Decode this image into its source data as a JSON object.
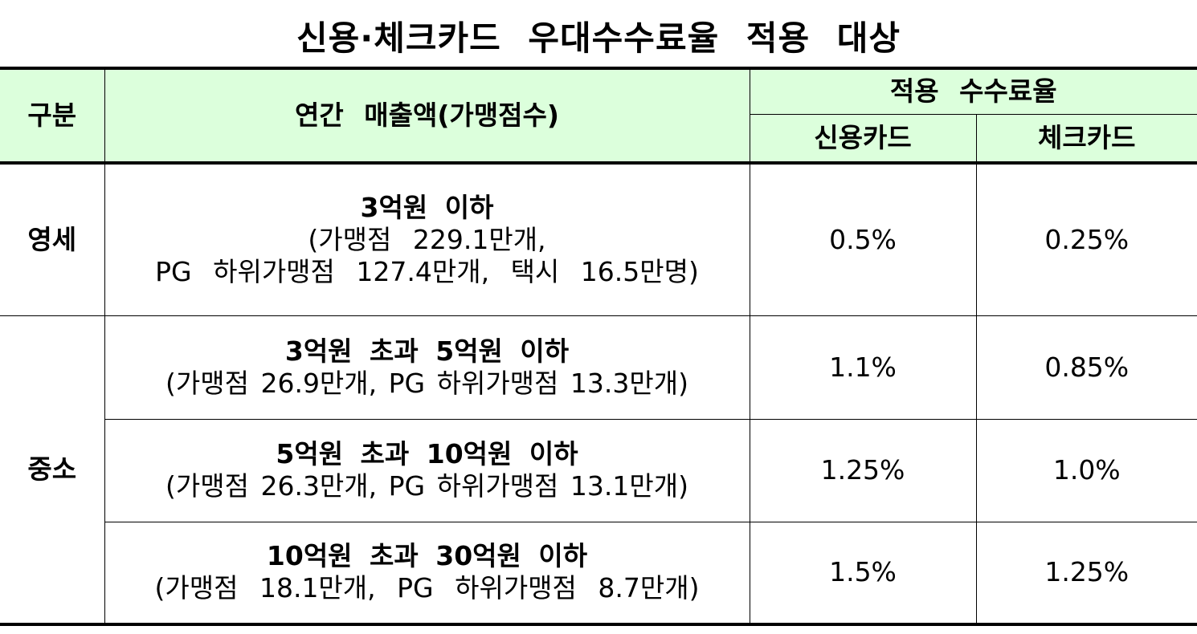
{
  "title": "신용·체크카드 우대수수료율 적용 대상",
  "header": {
    "category": "구분",
    "revenue": "연간 매출액(가맹점수)",
    "rate_group": "적용 수수료율",
    "credit": "신용카드",
    "check": "체크카드"
  },
  "groups": {
    "small": "영세",
    "medium": "중소"
  },
  "rows": [
    {
      "main": "3억원 이하",
      "sub1": "(가맹점 229.1만개,",
      "sub2": "PG 하위가맹점 127.4만개, 택시 16.5만명)",
      "credit": "0.5%",
      "check": "0.25%"
    },
    {
      "main": "3억원 초과 5억원 이하",
      "sub1": "(가맹점 26.9만개, PG 하위가맹점 13.3만개)",
      "credit": "1.1%",
      "check": "0.85%"
    },
    {
      "main": "5억원 초과 10억원 이하",
      "sub1": "(가맹점 26.3만개, PG 하위가맹점 13.1만개)",
      "credit": "1.25%",
      "check": "1.0%"
    },
    {
      "main": "10억원 초과 30억원 이하",
      "sub1": "(가맹점 18.1만개, PG 하위가맹점 8.7만개)",
      "credit": "1.5%",
      "check": "1.25%"
    }
  ],
  "colors": {
    "header_bg": "#dcffdc"
  }
}
